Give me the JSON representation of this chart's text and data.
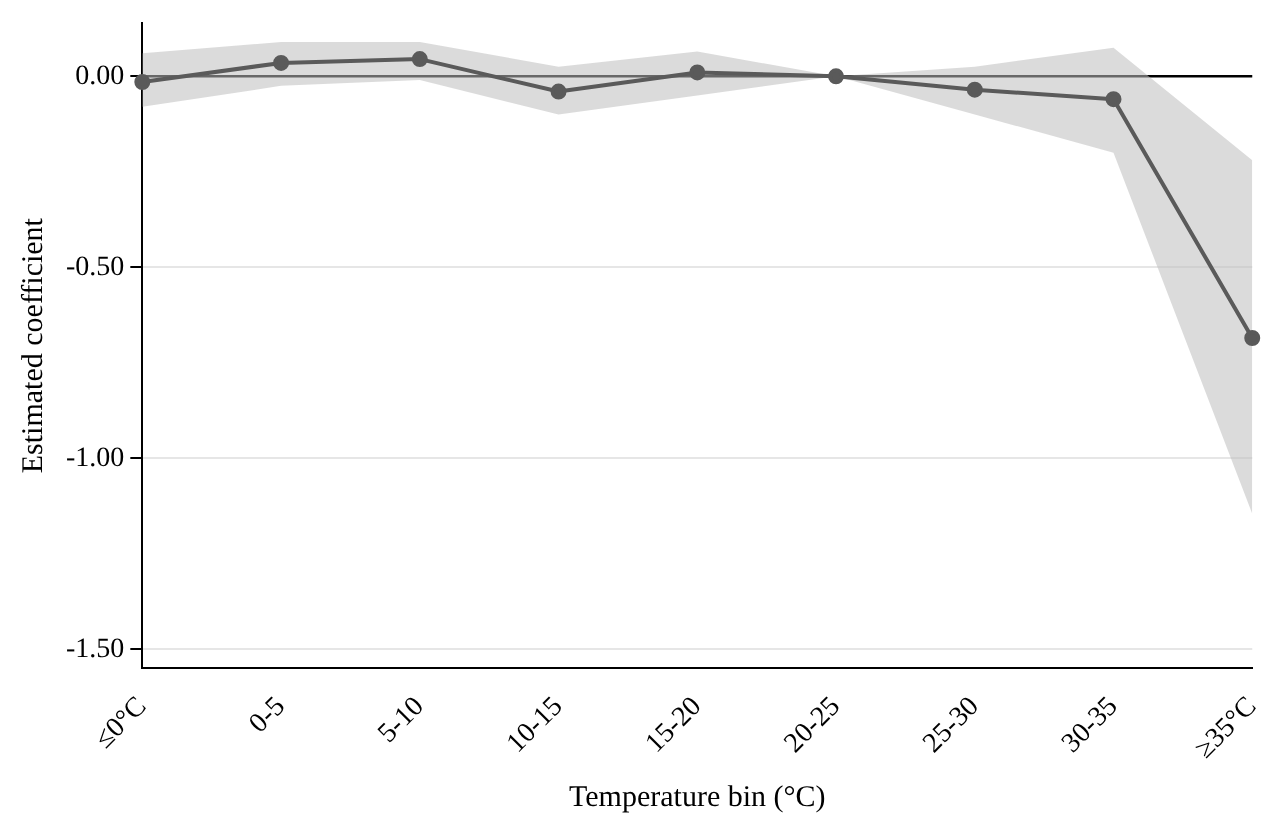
{
  "chart_data": {
    "type": "line",
    "xlabel": "Temperature bin (°C)",
    "ylabel": "Estimated coefficient",
    "categories": [
      "≤0°C",
      "0-5",
      "5-10",
      "10-15",
      "15-20",
      "20-25",
      "25-30",
      "30-35",
      "≥35°C"
    ],
    "series": [
      {
        "color": "#5a5a5a",
        "values": [
          -0.015,
          0.035,
          0.045,
          -0.04,
          0.01,
          0,
          -0.035,
          -0.06,
          -0.685
        ],
        "lower": [
          -0.08,
          -0.025,
          -0.01,
          -0.1,
          -0.05,
          0,
          -0.1,
          -0.2,
          -1.145
        ],
        "upper": [
          0.06,
          0.09,
          0.09,
          0.025,
          0.065,
          0,
          0.025,
          0.075,
          -0.22
        ]
      }
    ],
    "ylim": [
      -1.55,
      0.14
    ],
    "yticks": [
      {
        "value": 0,
        "label": "0.00"
      },
      {
        "value": -0.5,
        "label": "-0.50"
      },
      {
        "value": -1,
        "label": "-1.00"
      },
      {
        "value": -1.5,
        "label": "-1.50"
      }
    ],
    "ref_lines": [
      {
        "axis": "y",
        "value": 0,
        "color": "#000000"
      }
    ],
    "grid": "y",
    "legend": false,
    "marker": "circle",
    "line_style": "solid"
  }
}
